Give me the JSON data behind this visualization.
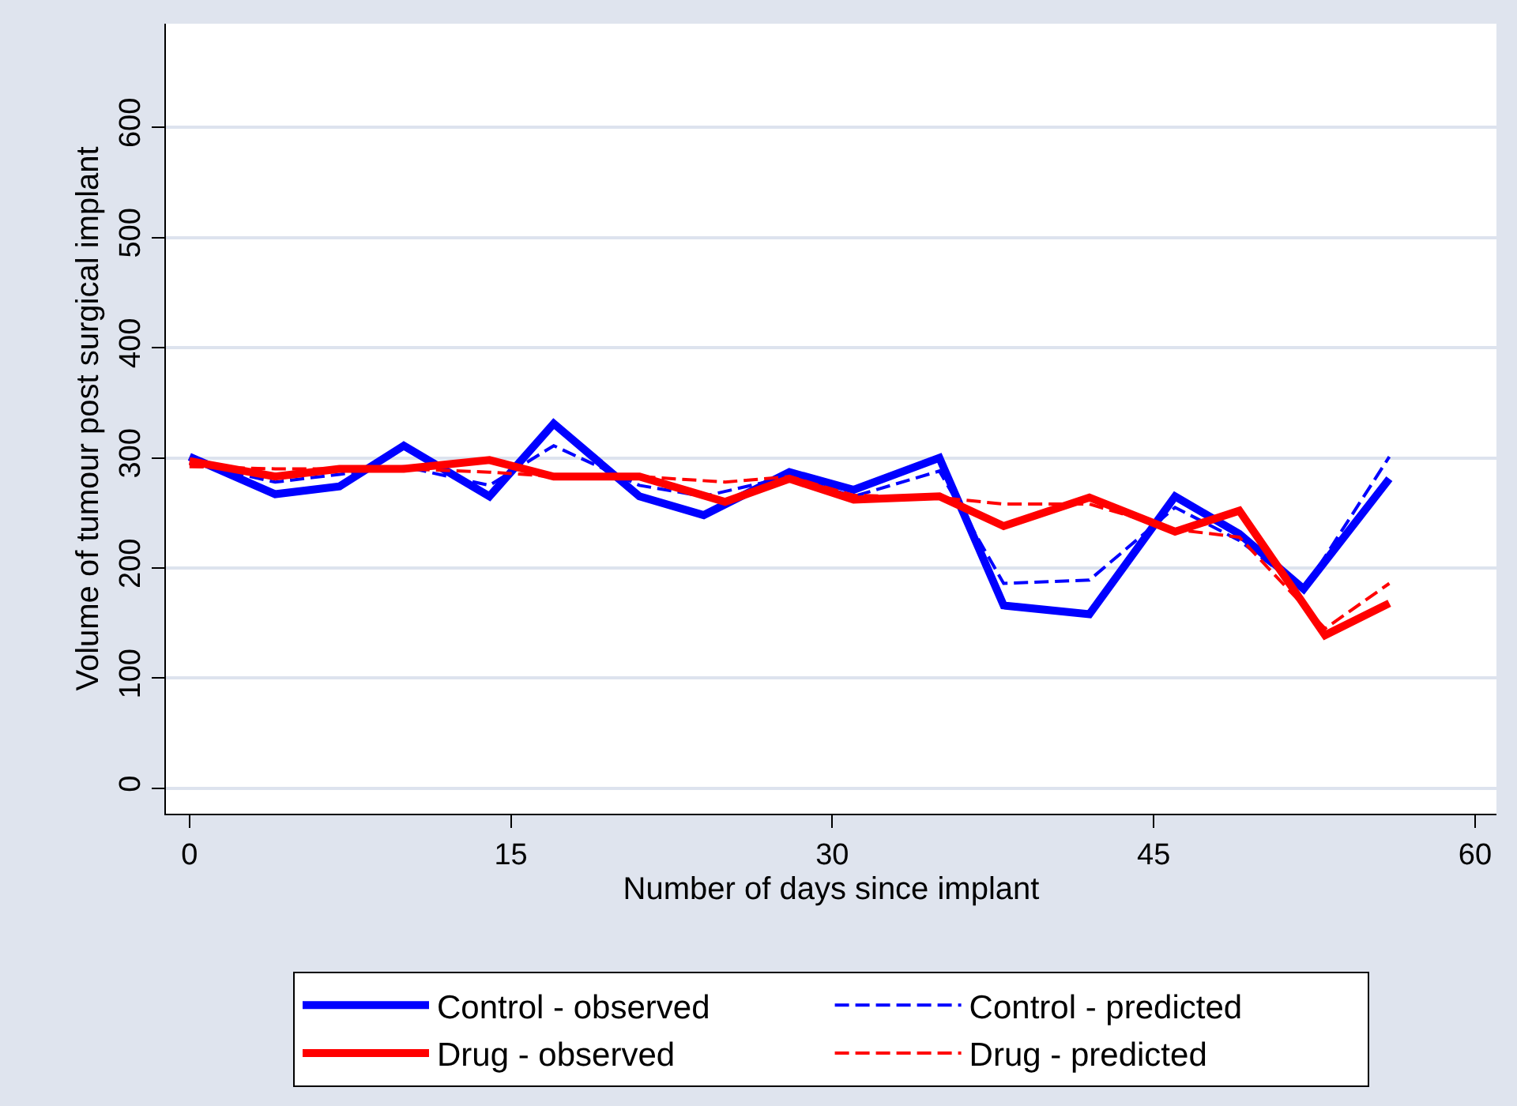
{
  "chart_data": {
    "type": "line",
    "xlabel": "Number of days since implant",
    "ylabel": "Volume of tumour post surgical implant",
    "xlim": [
      -1.1,
      61
    ],
    "xticks": [
      0,
      15,
      30,
      45,
      60
    ],
    "ylim": [
      -23,
      694
    ],
    "yticks": [
      0,
      100,
      200,
      300,
      400,
      500,
      600
    ],
    "grid": "y",
    "legend": "bottom",
    "series": [
      {
        "name": "Control - observed",
        "color": "#0000ff",
        "line_style": "solid",
        "x": [
          0,
          4,
          7,
          10,
          14,
          17,
          21,
          24,
          28,
          31,
          35,
          38,
          42,
          46,
          49,
          52,
          56
        ],
        "values": [
          301,
          267,
          274,
          311,
          265,
          331,
          265,
          248,
          287,
          271,
          300,
          166,
          158,
          265,
          231,
          181,
          281
        ]
      },
      {
        "name": "Control - predicted",
        "color": "#0000ff",
        "line_style": "dashed",
        "x": [
          0,
          4,
          7,
          10,
          14,
          17,
          21,
          24,
          28,
          31,
          35,
          38,
          42,
          46,
          49,
          52,
          56
        ],
        "values": [
          295,
          278,
          285,
          292,
          275,
          311,
          275,
          265,
          283,
          265,
          288,
          186,
          189,
          255,
          225,
          180,
          301
        ]
      },
      {
        "name": "Drug - observed",
        "color": "#ff0000",
        "line_style": "solid",
        "x": [
          0,
          4,
          7,
          10,
          14,
          17,
          21,
          25,
          28,
          31,
          35,
          38,
          42,
          46,
          49,
          53,
          56
        ],
        "values": [
          297,
          283,
          290,
          290,
          298,
          283,
          283,
          260,
          281,
          262,
          265,
          238,
          264,
          233,
          252,
          139,
          168
        ]
      },
      {
        "name": "Drug - predicted",
        "color": "#ff0000",
        "line_style": "dashed",
        "x": [
          0,
          4,
          7,
          10,
          14,
          17,
          21,
          25,
          28,
          31,
          35,
          38,
          42,
          46,
          49,
          53,
          56
        ],
        "values": [
          292,
          290,
          290,
          290,
          287,
          283,
          283,
          278,
          283,
          266,
          264,
          258,
          258,
          235,
          228,
          145,
          186
        ]
      }
    ]
  }
}
